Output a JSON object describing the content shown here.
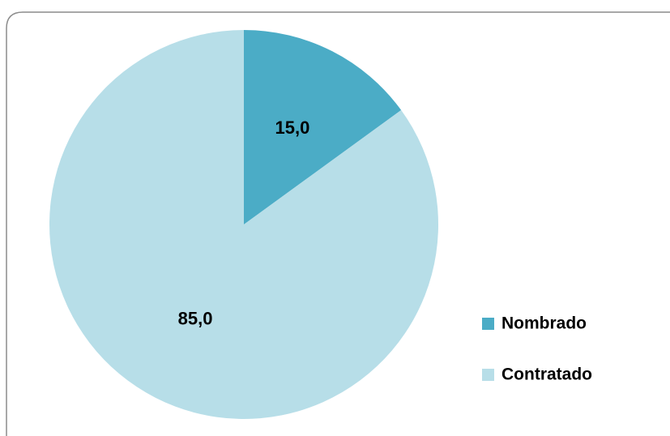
{
  "chart_data": {
    "type": "pie",
    "categories": [
      "Nombrado",
      "Contratado"
    ],
    "values": [
      15.0,
      85.0
    ],
    "value_labels": [
      "15,0",
      "85,0"
    ],
    "colors": [
      "#4bacc6",
      "#b7dee8"
    ],
    "legend": "right"
  }
}
